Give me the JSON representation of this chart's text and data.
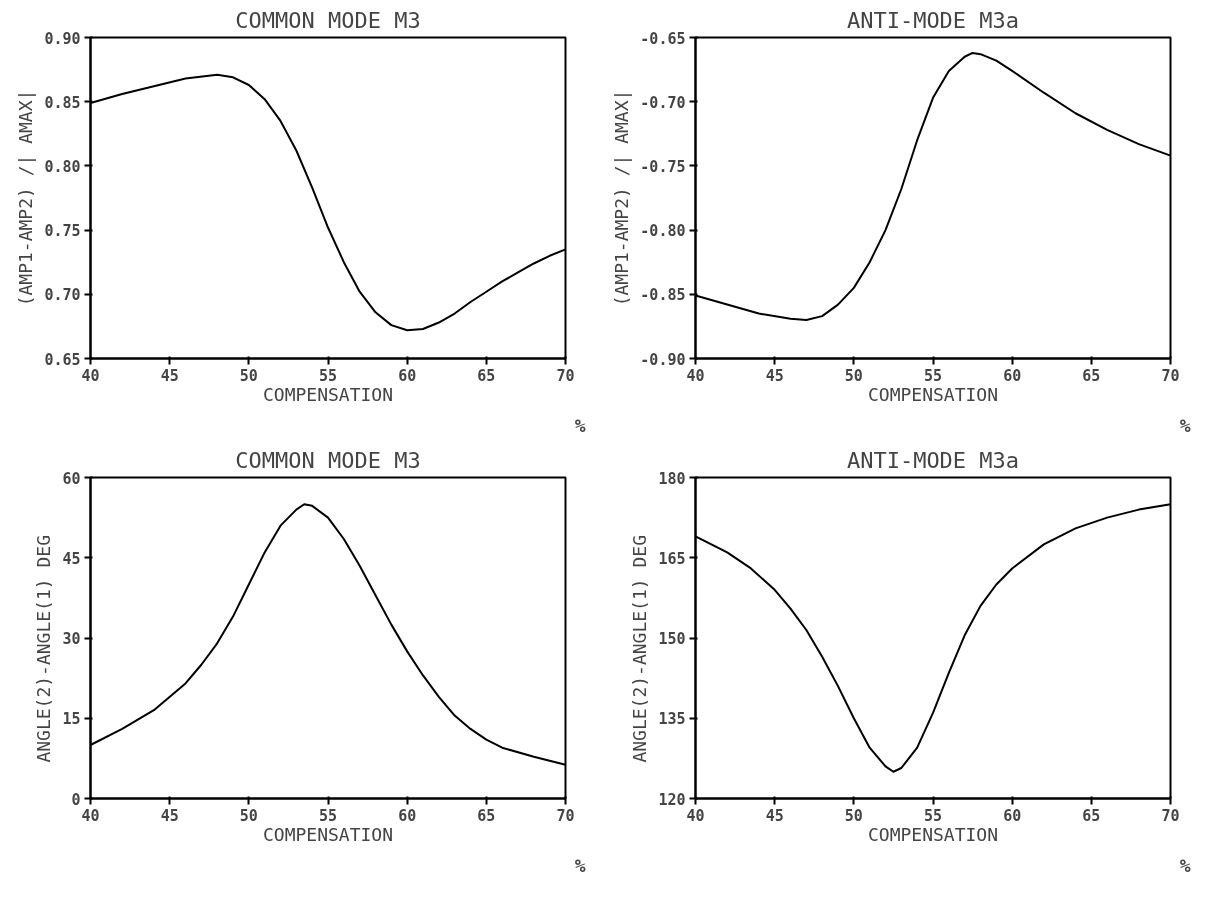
{
  "chart_data": [
    {
      "type": "line",
      "title": "COMMON MODE M3",
      "xlabel": "COMPENSATION",
      "ylabel": "(AMP1-AMP2) /| AMAX|",
      "annotations": [
        "%"
      ],
      "x": [
        40,
        42,
        44,
        46,
        48,
        49,
        50,
        51,
        52,
        53,
        54,
        55,
        56,
        57,
        58,
        59,
        60,
        61,
        62,
        63,
        64,
        65,
        66,
        67,
        68,
        69,
        70
      ],
      "series": [
        {
          "color": "#000000",
          "values": [
            0.849,
            0.856,
            0.862,
            0.868,
            0.871,
            0.869,
            0.863,
            0.852,
            0.835,
            0.812,
            0.783,
            0.752,
            0.725,
            0.702,
            0.686,
            0.676,
            0.672,
            0.673,
            0.678,
            0.685,
            0.694,
            0.702,
            0.71,
            0.717,
            0.724,
            0.73,
            0.735
          ]
        }
      ],
      "xlim": [
        40,
        70
      ],
      "xticks": [
        40,
        45,
        50,
        55,
        60,
        65,
        70
      ],
      "ylim": [
        0.65,
        0.9
      ],
      "yticks": [
        {
          "value": 0.65,
          "label": "0.65"
        },
        {
          "value": 0.7,
          "label": "0.70"
        },
        {
          "value": 0.75,
          "label": "0.75"
        },
        {
          "value": 0.8,
          "label": "0.80"
        },
        {
          "value": 0.85,
          "label": "0.85"
        },
        {
          "value": 0.9,
          "label": "0.90"
        }
      ],
      "grid": false,
      "marker": "none",
      "line_style": "solid"
    },
    {
      "type": "line",
      "title": "ANTI-MODE M3a",
      "xlabel": "COMPENSATION",
      "ylabel": "(AMP1-AMP2) /| AMAX|",
      "annotations": [
        "%"
      ],
      "x": [
        40,
        42,
        44,
        46,
        47,
        48,
        49,
        50,
        51,
        52,
        53,
        54,
        55,
        56,
        57,
        57.5,
        58,
        59,
        60,
        62,
        64,
        66,
        68,
        70
      ],
      "series": [
        {
          "color": "#000000",
          "values": [
            -0.851,
            -0.858,
            -0.865,
            -0.869,
            -0.87,
            -0.867,
            -0.858,
            -0.845,
            -0.825,
            -0.8,
            -0.768,
            -0.73,
            -0.697,
            -0.676,
            -0.665,
            -0.662,
            -0.663,
            -0.668,
            -0.676,
            -0.693,
            -0.709,
            -0.722,
            -0.733,
            -0.742
          ]
        }
      ],
      "xlim": [
        40,
        70
      ],
      "xticks": [
        40,
        45,
        50,
        55,
        60,
        65,
        70
      ],
      "ylim": [
        -0.9,
        -0.65
      ],
      "yticks": [
        {
          "value": -0.9,
          "label": "-0.90"
        },
        {
          "value": -0.85,
          "label": "-0.85"
        },
        {
          "value": -0.8,
          "label": "-0.80"
        },
        {
          "value": -0.75,
          "label": "-0.75"
        },
        {
          "value": -0.7,
          "label": "-0.70"
        },
        {
          "value": -0.65,
          "label": "-0.65"
        }
      ],
      "grid": false,
      "marker": "none",
      "line_style": "solid"
    },
    {
      "type": "line",
      "title": "COMMON MODE M3",
      "xlabel": "COMPENSATION",
      "ylabel": "ANGLE(2)-ANGLE(1)   DEG",
      "annotations": [
        "%"
      ],
      "x": [
        40,
        42,
        44,
        46,
        47,
        48,
        49,
        50,
        51,
        52,
        53,
        53.5,
        54,
        55,
        56,
        57,
        58,
        59,
        60,
        61,
        62,
        63,
        64,
        65,
        66,
        68,
        70
      ],
      "series": [
        {
          "color": "#000000",
          "values": [
            10,
            13,
            16.5,
            21.5,
            25,
            29,
            34,
            40,
            46,
            51,
            54,
            55,
            54.7,
            52.5,
            48.5,
            43.5,
            38,
            32.5,
            27.5,
            23,
            19,
            15.5,
            13,
            11,
            9.5,
            7.8,
            6.3
          ]
        }
      ],
      "xlim": [
        40,
        70
      ],
      "xticks": [
        40,
        45,
        50,
        55,
        60,
        65,
        70
      ],
      "ylim": [
        0,
        60
      ],
      "yticks": [
        0,
        15,
        30,
        45,
        60
      ],
      "grid": false,
      "marker": "none",
      "line_style": "solid"
    },
    {
      "type": "line",
      "title": "ANTI-MODE M3a",
      "xlabel": "COMPENSATION",
      "ylabel": "ANGLE(2)-ANGLE(1)   DEG",
      "annotations": [
        "%"
      ],
      "x": [
        40,
        42,
        43.5,
        45,
        46,
        47,
        48,
        49,
        50,
        51,
        52,
        52.5,
        53,
        54,
        55,
        56,
        57,
        58,
        59,
        60,
        62,
        64,
        66,
        68,
        70
      ],
      "series": [
        {
          "color": "#000000",
          "values": [
            169,
            166,
            163,
            159,
            155.5,
            151.5,
            146.5,
            141,
            135,
            129.5,
            126,
            125,
            125.7,
            129.5,
            136,
            143.5,
            150.5,
            156,
            160,
            163,
            167.5,
            170.5,
            172.5,
            174,
            175
          ]
        }
      ],
      "xlim": [
        40,
        70
      ],
      "xticks": [
        40,
        45,
        50,
        55,
        60,
        65,
        70
      ],
      "ylim": [
        120,
        180
      ],
      "yticks": [
        120,
        135,
        150,
        165,
        180
      ],
      "grid": false,
      "marker": "none",
      "line_style": "solid"
    }
  ]
}
